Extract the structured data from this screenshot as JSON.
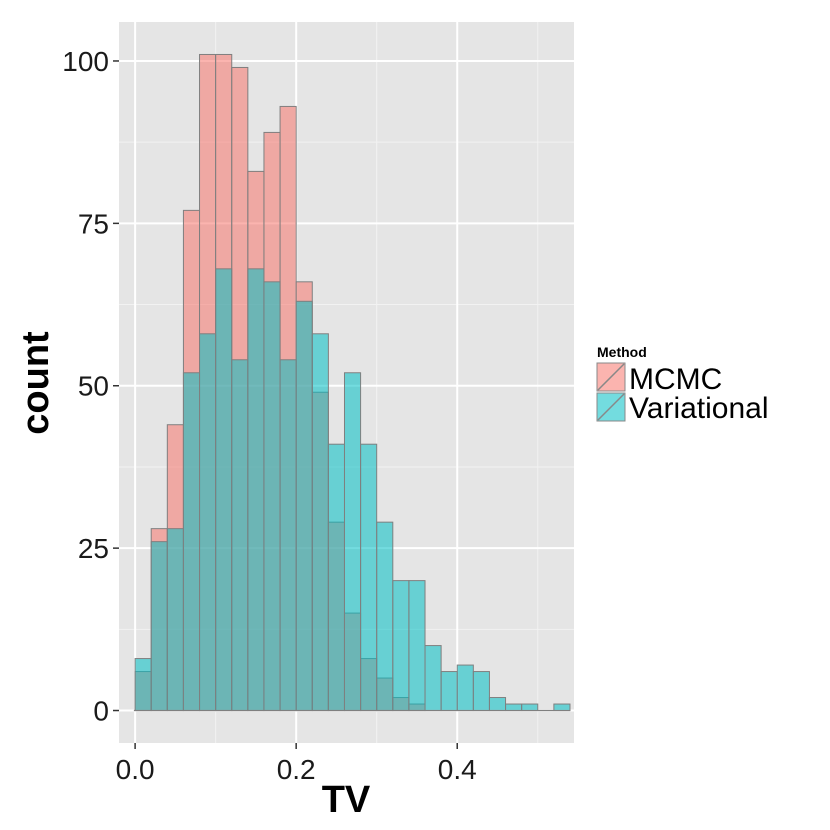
{
  "chart_data": {
    "type": "bar",
    "xlabel": "TV",
    "ylabel": "count",
    "xlim": [
      -0.02,
      0.545
    ],
    "ylim": [
      -5,
      106
    ],
    "x_ticks": [
      0.0,
      0.2,
      0.4
    ],
    "x_tick_labels": [
      "0.0",
      "0.2",
      "0.4"
    ],
    "y_ticks": [
      0,
      25,
      50,
      75,
      100
    ],
    "y_tick_labels": [
      "0",
      "25",
      "50",
      "75",
      "100"
    ],
    "bin_start": 0.0,
    "bin_width": 0.02,
    "legend": {
      "title": "Method",
      "placement": "right"
    },
    "series": [
      {
        "name": "MCMC",
        "color": "#F8766D",
        "values": [
          6,
          28,
          44,
          77,
          101,
          101,
          99,
          83,
          89,
          93,
          66,
          49,
          29,
          15,
          8,
          5,
          2,
          1
        ]
      },
      {
        "name": "Variational",
        "color": "#00BFC4",
        "values": [
          8,
          26,
          28,
          52,
          58,
          68,
          54,
          68,
          66,
          54,
          63,
          58,
          41,
          52,
          41,
          29,
          20,
          20,
          10,
          6,
          7,
          6,
          2,
          1,
          1,
          0,
          1
        ]
      }
    ]
  }
}
